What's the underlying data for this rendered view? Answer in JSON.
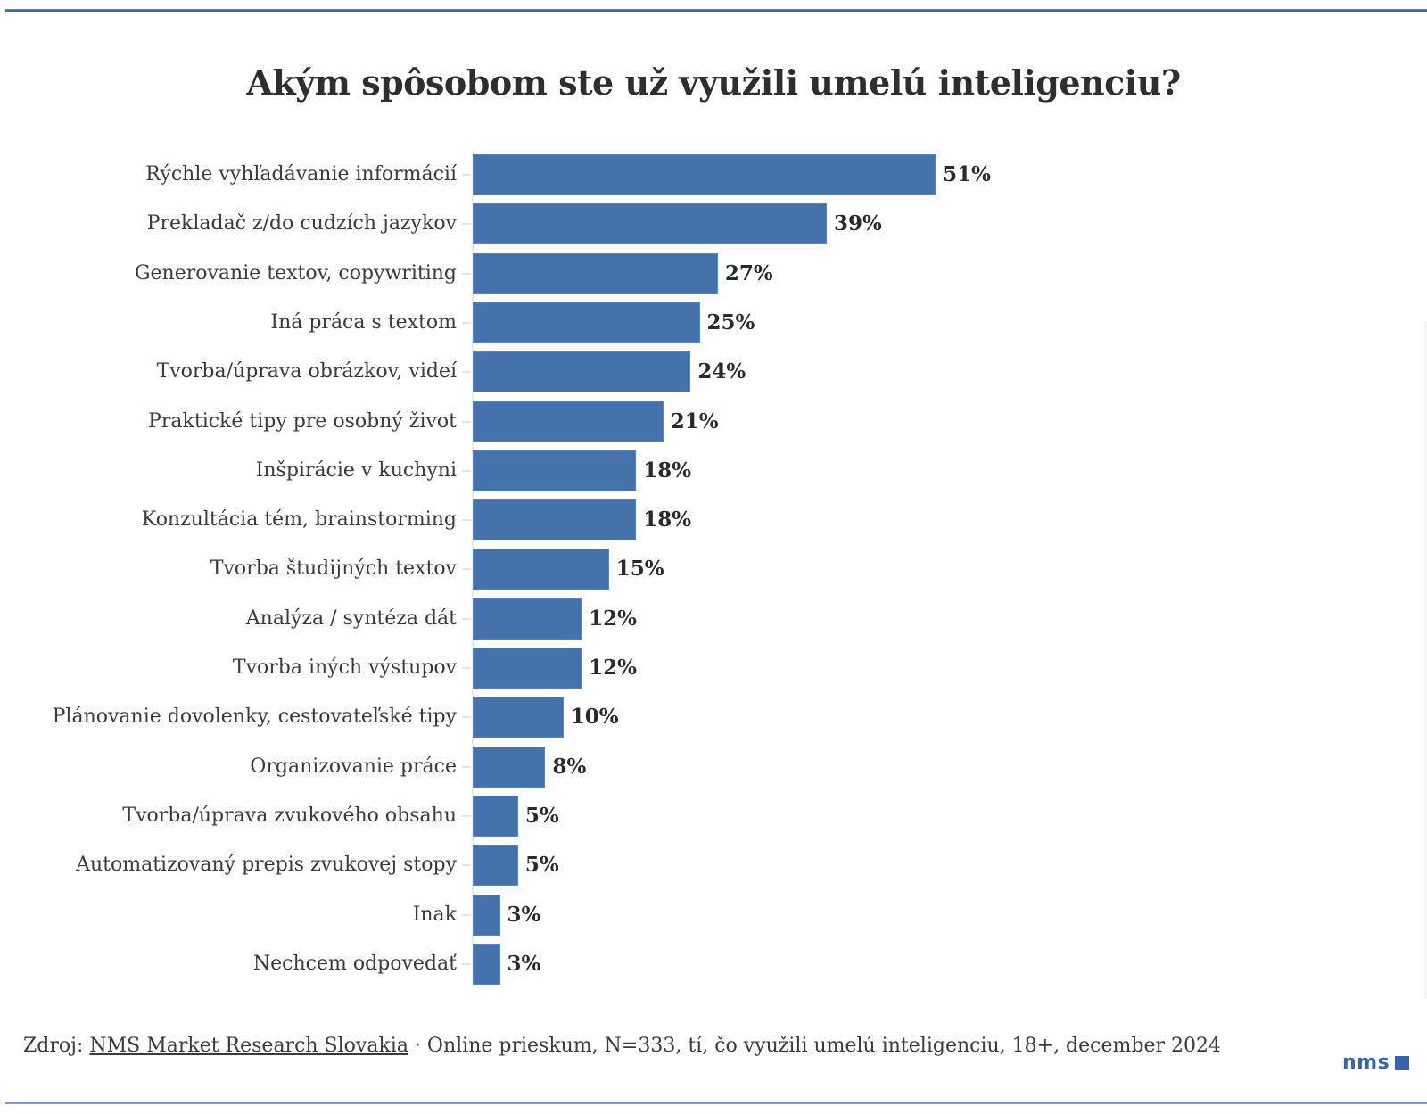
{
  "title": "Akým spôsobom ste už využili umelú inteligenciu?",
  "colors": {
    "bar": "#4672ab",
    "accent_rule": "#3f67a3",
    "logo": "#3564a8",
    "text": "#333333"
  },
  "rows": [
    {
      "label": "Rýchle vyhľadávanie informácií",
      "value": 51,
      "display": "51%"
    },
    {
      "label": "Prekladač z/do cudzích jazykov",
      "value": 39,
      "display": "39%"
    },
    {
      "label": "Generovanie textov, copywriting",
      "value": 27,
      "display": "27%"
    },
    {
      "label": "Iná práca s textom",
      "value": 25,
      "display": "25%"
    },
    {
      "label": "Tvorba/úprava obrázkov, videí",
      "value": 24,
      "display": "24%"
    },
    {
      "label": "Praktické tipy pre osobný život",
      "value": 21,
      "display": "21%"
    },
    {
      "label": "Inšpirácie v kuchyni",
      "value": 18,
      "display": "18%"
    },
    {
      "label": "Konzultácia tém, brainstorming",
      "value": 18,
      "display": "18%"
    },
    {
      "label": "Tvorba študijných textov",
      "value": 15,
      "display": "15%"
    },
    {
      "label": "Analýza / syntéza dát",
      "value": 12,
      "display": "12%"
    },
    {
      "label": "Tvorba iných výstupov",
      "value": 12,
      "display": "12%"
    },
    {
      "label": "Plánovanie dovolenky, cestovateľské tipy",
      "value": 10,
      "display": "10%"
    },
    {
      "label": "Organizovanie práce",
      "value": 8,
      "display": "8%"
    },
    {
      "label": "Tvorba/úprava zvukového obsahu",
      "value": 5,
      "display": "5%"
    },
    {
      "label": "Automatizovaný prepis zvukovej stopy",
      "value": 5,
      "display": "5%"
    },
    {
      "label": "Inak",
      "value": 3,
      "display": "3%"
    },
    {
      "label": "Nechcem odpovedať",
      "value": 3,
      "display": "3%"
    }
  ],
  "footer": {
    "prefix": "Zdroj: ",
    "source_link": "NMS Market Research Slovakia",
    "note": " · Online prieskum, N=333, tí, čo využili umelú inteligenciu, 18+, december 2024"
  },
  "logo": {
    "text": "nms"
  },
  "chart_data": {
    "type": "bar",
    "orientation": "horizontal",
    "title": "Akým spôsobom ste už využili umelú inteligenciu?",
    "categories": [
      "Rýchle vyhľadávanie informácií",
      "Prekladač z/do cudzích jazykov",
      "Generovanie textov, copywriting",
      "Iná práca s textom",
      "Tvorba/úprava obrázkov, videí",
      "Praktické tipy pre osobný život",
      "Inšpirácie v kuchyni",
      "Konzultácia tém, brainstorming",
      "Tvorba študijných textov",
      "Analýza / syntéza dát",
      "Tvorba iných výstupov",
      "Plánovanie dovolenky, cestovateľské tipy",
      "Organizovanie práce",
      "Tvorba/úprava zvukového obsahu",
      "Automatizovaný prepis zvukovej stopy",
      "Inak",
      "Nechcem odpovedať"
    ],
    "values": [
      51,
      39,
      27,
      25,
      24,
      21,
      18,
      18,
      15,
      12,
      12,
      10,
      8,
      5,
      5,
      3,
      3
    ],
    "unit": "%",
    "data_labels": true,
    "xlabel": "",
    "ylabel": "",
    "xlim": [
      0,
      55
    ],
    "grid": false,
    "legend": null,
    "source": "Zdroj: NMS Market Research Slovakia · Online prieskum, N=333, tí, čo využili umelú inteligenciu, 18+, december 2024"
  }
}
